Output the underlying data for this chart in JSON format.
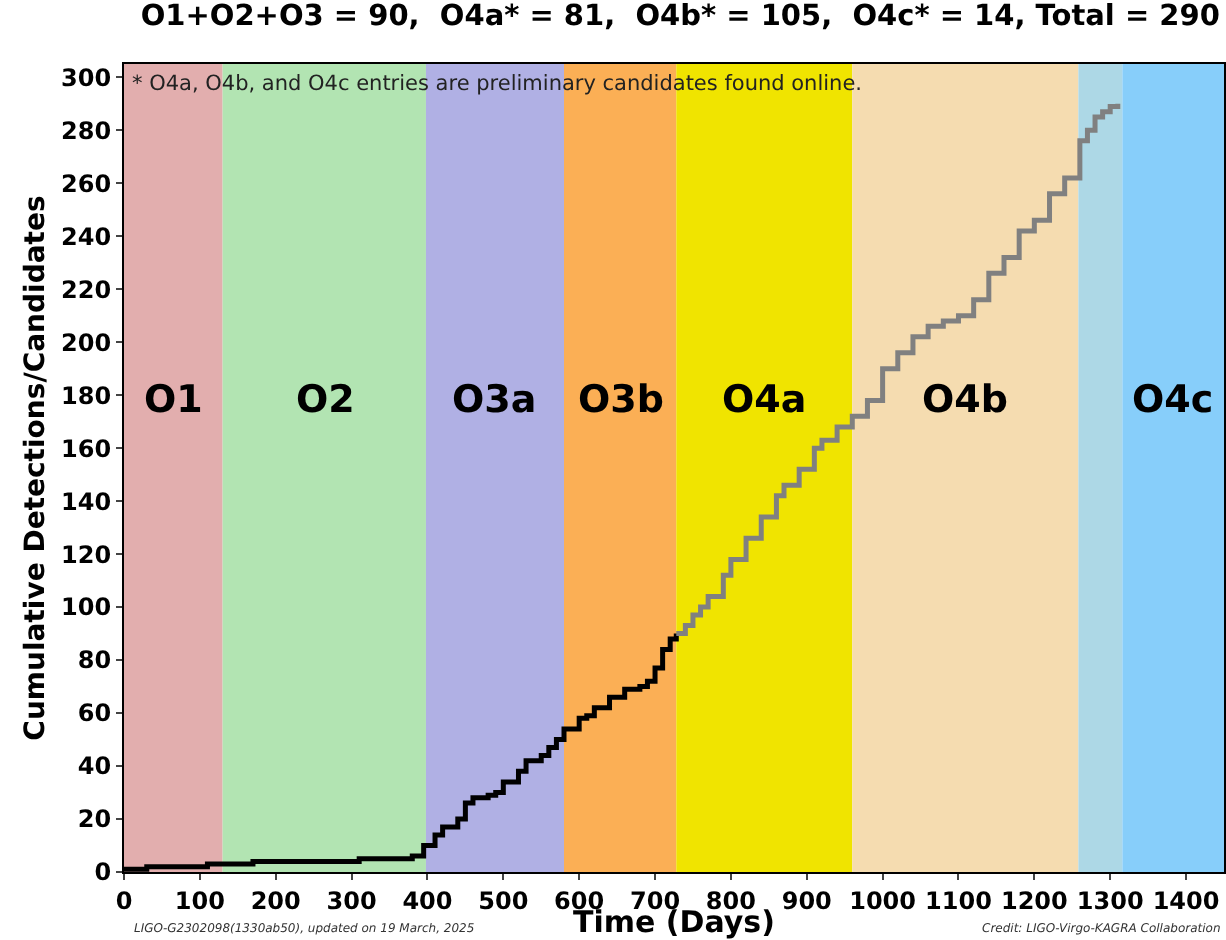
{
  "chart_data": {
    "type": "step",
    "title": "O1+O2+O3 = 90,  O4a* = 81,  O4b* = 105,  O4c* = 14, Total = 290",
    "xlabel": "Time (Days)",
    "ylabel": "Cumulative Detections/Candidates",
    "annotations": [
      "* O4a, O4b, and O4c entries are preliminary candidates found online.",
      "LIGO-G2302098(1330ab50), updated on 19 March, 2025",
      "Credit: LIGO-Virgo-KAGRA Collaboration"
    ],
    "series": [
      {
        "color": "#000000",
        "x": [
          0,
          30,
          100,
          110,
          160,
          170,
          300,
          310,
          370,
          380,
          395,
          410,
          420,
          440,
          450,
          460,
          480,
          490,
          500,
          520,
          530,
          550,
          560,
          570,
          580,
          600,
          610,
          620,
          640,
          660,
          680,
          690,
          700,
          710,
          720,
          728
        ],
        "values": [
          1,
          2,
          2,
          3,
          3,
          4,
          4,
          5,
          5,
          6,
          10,
          14,
          17,
          20,
          26,
          28,
          29,
          30,
          34,
          38,
          42,
          44,
          47,
          50,
          54,
          58,
          59,
          62,
          66,
          69,
          70,
          72,
          77,
          84,
          88,
          90
        ]
      },
      {
        "color": "#808080",
        "x": [
          728,
          740,
          750,
          760,
          770,
          790,
          800,
          820,
          840,
          860,
          870,
          890,
          910,
          920,
          940,
          960,
          980,
          1000,
          1020,
          1040,
          1060,
          1080,
          1100,
          1120,
          1140,
          1160,
          1180,
          1200,
          1220,
          1240,
          1260,
          1270,
          1280,
          1290,
          1300,
          1310
        ],
        "values": [
          90,
          93,
          97,
          100,
          104,
          112,
          118,
          126,
          134,
          142,
          146,
          152,
          160,
          163,
          168,
          172,
          178,
          190,
          196,
          202,
          206,
          208,
          210,
          216,
          226,
          232,
          242,
          246,
          256,
          262,
          276,
          280,
          285,
          287,
          289,
          290
        ]
      }
    ],
    "bands": [
      {
        "axis": "x",
        "from": 0,
        "to": 130,
        "label": "O1",
        "color": "#e2aeae"
      },
      {
        "axis": "x",
        "from": 130,
        "to": 398,
        "label": "O2",
        "color": "#b2e4b2"
      },
      {
        "axis": "x",
        "from": 398,
        "to": 580,
        "label": "O3a",
        "color": "#b0b0e4"
      },
      {
        "axis": "x",
        "from": 580,
        "to": 728,
        "label": "O3b",
        "color": "#fbaf55"
      },
      {
        "axis": "x",
        "from": 728,
        "to": 960,
        "label": "O4a",
        "color": "#f0e400"
      },
      {
        "axis": "x",
        "from": 960,
        "to": 1258,
        "label": "O4b",
        "color": "#f5dcb0"
      },
      {
        "axis": "x",
        "from": 1258,
        "to": 1316,
        "label": null,
        "color": "#add8e6"
      },
      {
        "axis": "x",
        "from": 1316,
        "to": 1450,
        "label": "O4c",
        "color": "#87cefa"
      }
    ],
    "xlim": [
      0,
      1450
    ],
    "xticks": [
      0,
      100,
      200,
      300,
      400,
      500,
      600,
      700,
      800,
      900,
      1000,
      1100,
      1200,
      1300,
      1400
    ],
    "ylim": [
      0,
      305
    ],
    "yticks": [
      0,
      20,
      40,
      60,
      80,
      100,
      120,
      140,
      160,
      180,
      200,
      220,
      240,
      260,
      280,
      300
    ],
    "grid": false
  }
}
